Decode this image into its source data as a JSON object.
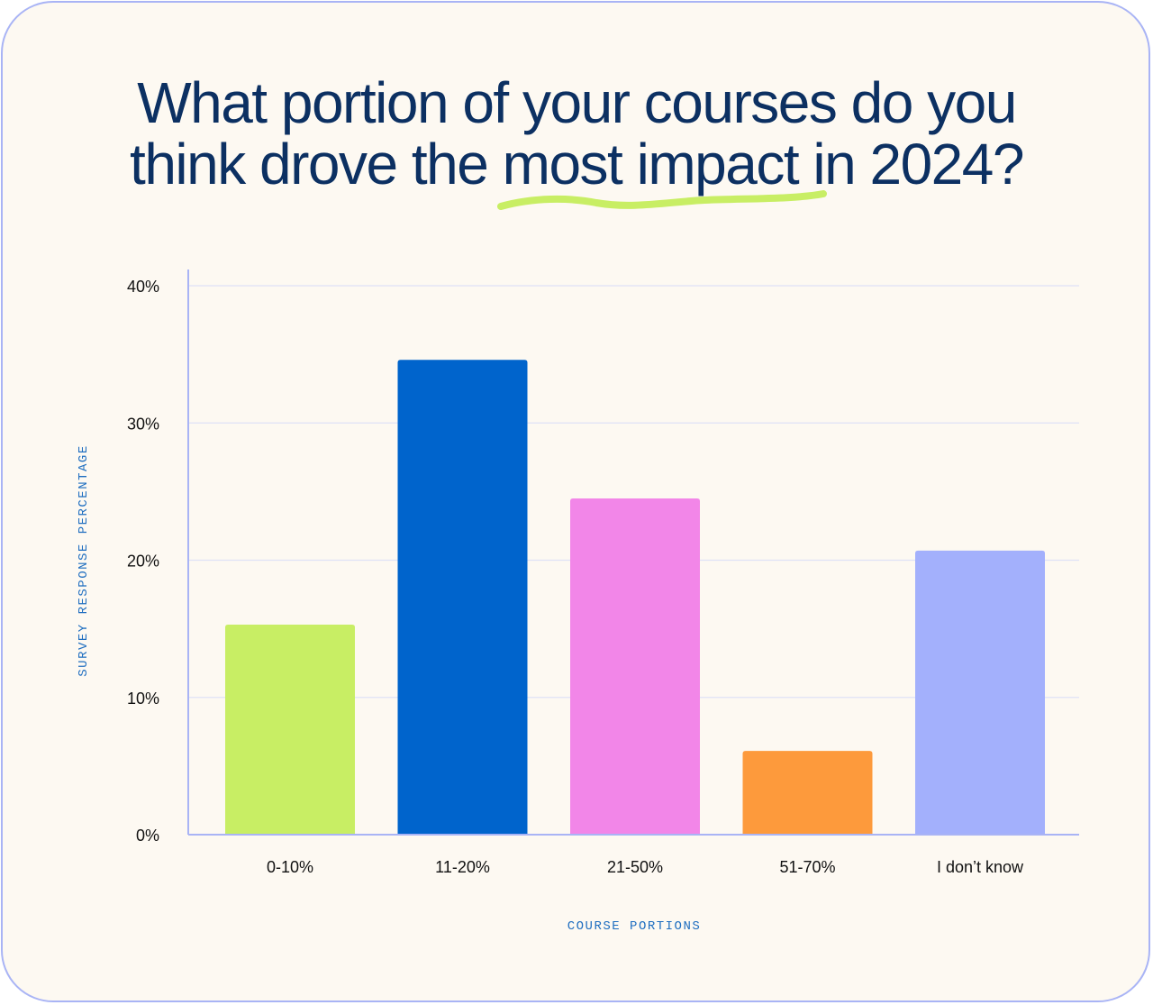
{
  "title": {
    "line1": "What portion of your courses do you",
    "line2_before": "think drove the ",
    "line2_highlight": "most impact",
    "line2_after": " in 2024?"
  },
  "colors": {
    "title": "#0c3062",
    "highlight_underline": "#c8ee64",
    "card_border": "#a9b4f5",
    "card_background": "#fdf9f2",
    "axis": "#a9b4f5",
    "axis_title": "#1f6ec0"
  },
  "chart_data": {
    "type": "bar",
    "categories": [
      "0-10%",
      "11-20%",
      "21-50%",
      "51-70%",
      "I don’t know"
    ],
    "values": [
      15.3,
      34.6,
      24.5,
      6.1,
      20.7
    ],
    "colors": [
      "#c8ee64",
      "#0064cc",
      "#f286e8",
      "#fd9a3c",
      "#a3b0fc"
    ],
    "ylim": [
      0,
      40
    ],
    "yticks": [
      0,
      10,
      20,
      30,
      40
    ],
    "ytick_labels": [
      "0%",
      "10%",
      "20%",
      "30%",
      "40%"
    ],
    "xlabel": "COURSE PORTIONS",
    "ylabel": "SURVEY RESPONSE PERCENTAGE",
    "grid": true,
    "legend": "none"
  }
}
